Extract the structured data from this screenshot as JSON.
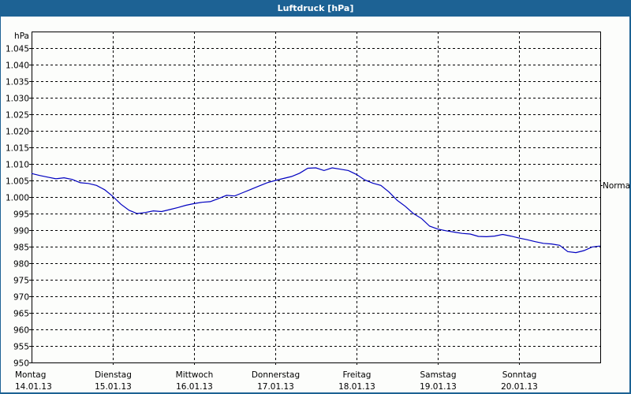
{
  "title": "Luftdruck [hPa]",
  "chart_data": {
    "type": "line",
    "title": "Luftdruck [hPa]",
    "ylabel": "hPa",
    "ylim": [
      950,
      1047
    ],
    "yticks": [
      "1.045",
      "1.040",
      "1.035",
      "1.030",
      "1.025",
      "1.020",
      "1.015",
      "1.010",
      "1.005",
      "1.000",
      "995",
      "990",
      "985",
      "980",
      "975",
      "970",
      "965",
      "960",
      "955",
      "950"
    ],
    "ytick_values": [
      1045,
      1040,
      1035,
      1030,
      1025,
      1020,
      1015,
      1010,
      1005,
      1000,
      995,
      990,
      985,
      980,
      975,
      970,
      965,
      960,
      955,
      950
    ],
    "xticks": [
      {
        "day": "Montag",
        "date": "14.01.13"
      },
      {
        "day": "Dienstag",
        "date": "15.01.13"
      },
      {
        "day": "Mittwoch",
        "date": "16.01.13"
      },
      {
        "day": "Donnerstag",
        "date": "17.01.13"
      },
      {
        "day": "Freitag",
        "date": "18.01.13"
      },
      {
        "day": "Samstag",
        "date": "19.01.13"
      },
      {
        "day": "Sonntag",
        "date": "20.01.13"
      }
    ],
    "reference_label": "Normal",
    "reference_value": 1003.5,
    "grid": true,
    "line_color": "#0000c0",
    "series": [
      {
        "name": "Luftdruck",
        "x_days": [
          0,
          0.1,
          0.2,
          0.3,
          0.4,
          0.5,
          0.6,
          0.7,
          0.8,
          0.9,
          1.0,
          1.1,
          1.2,
          1.3,
          1.4,
          1.5,
          1.6,
          1.7,
          1.8,
          1.9,
          2.0,
          2.1,
          2.2,
          2.3,
          2.4,
          2.5,
          2.6,
          2.7,
          2.8,
          2.9,
          3.0,
          3.1,
          3.2,
          3.3,
          3.4,
          3.5,
          3.6,
          3.7,
          3.8,
          3.9,
          4.0,
          4.1,
          4.2,
          4.3,
          4.4,
          4.5,
          4.6,
          4.7,
          4.8,
          4.9,
          5.0,
          5.1,
          5.2,
          5.3,
          5.4,
          5.5,
          5.6,
          5.7,
          5.8,
          5.9,
          6.0,
          6.1,
          6.2,
          6.3,
          6.4,
          6.5,
          6.6,
          6.7,
          6.8,
          6.9,
          7.0
        ],
        "values": [
          1007.1,
          1006.5,
          1006.0,
          1005.5,
          1005.8,
          1005.3,
          1004.3,
          1004.1,
          1003.5,
          1002.2,
          1000.2,
          997.8,
          996.0,
          995.0,
          995.3,
          995.8,
          995.6,
          996.2,
          996.8,
          997.5,
          998.0,
          998.4,
          998.6,
          999.5,
          1000.5,
          1000.3,
          1001.3,
          1002.3,
          1003.3,
          1004.3,
          1005.0,
          1005.6,
          1006.2,
          1007.2,
          1008.7,
          1008.8,
          1008.0,
          1008.8,
          1008.4,
          1008.0,
          1006.8,
          1005.2,
          1004.2,
          1003.5,
          1001.5,
          999.0,
          997.2,
          995.0,
          993.5,
          991.2,
          990.3,
          989.8,
          989.4,
          989.0,
          988.8,
          988.1,
          988.0,
          988.2,
          988.7,
          988.2,
          987.6,
          987.1,
          986.5,
          986.0,
          985.8,
          985.4,
          983.5,
          983.2,
          983.8,
          984.9,
          985.2
        ]
      }
    ]
  }
}
